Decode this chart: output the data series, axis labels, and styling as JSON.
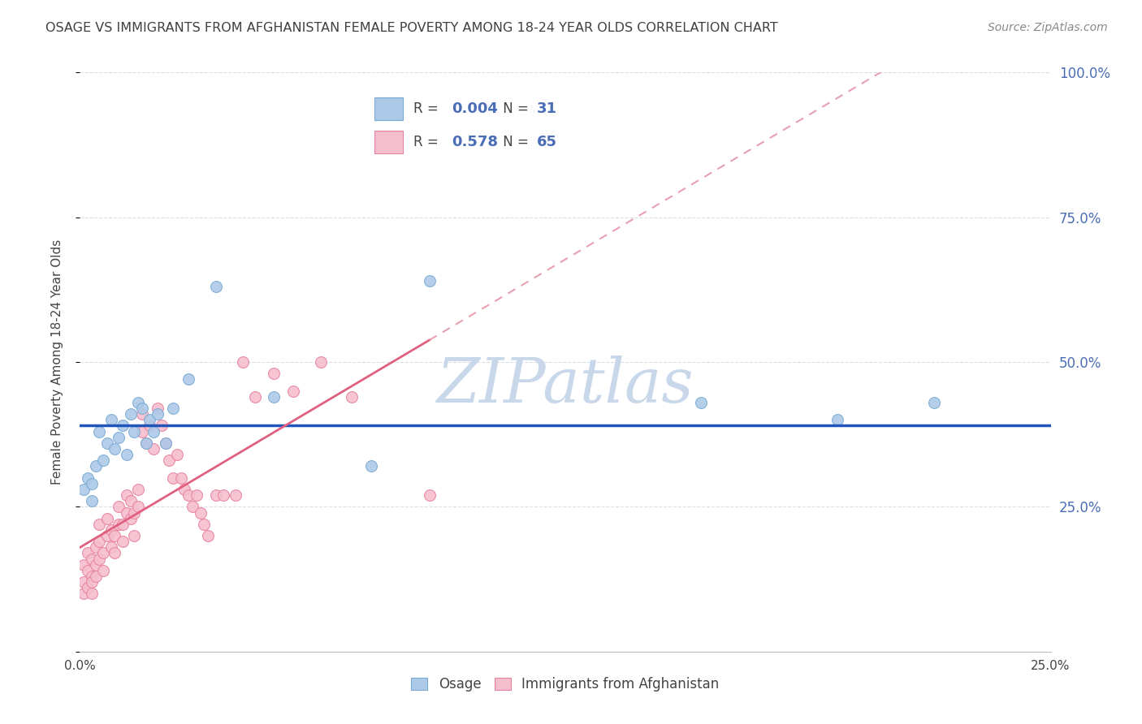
{
  "title": "OSAGE VS IMMIGRANTS FROM AFGHANISTAN FEMALE POVERTY AMONG 18-24 YEAR OLDS CORRELATION CHART",
  "source": "Source: ZipAtlas.com",
  "ylabel": "Female Poverty Among 18-24 Year Olds",
  "xlim": [
    0.0,
    0.25
  ],
  "ylim": [
    0.0,
    1.0
  ],
  "group1_label": "Osage",
  "group1_color": "#adc9e8",
  "group1_edge": "#7aabd4",
  "group1_R": 0.004,
  "group1_N": 31,
  "group2_label": "Immigrants from Afghanistan",
  "group2_color": "#f5bece",
  "group2_edge": "#e8839e",
  "group2_R": 0.578,
  "group2_N": 65,
  "trend1_color": "#2255bb",
  "trend2_color": "#e06080",
  "trend2_dash_color": "#e8a0b0",
  "watermark_color": "#c8d8ea",
  "background_color": "#ffffff",
  "grid_color": "#d8dfe8",
  "title_color": "#404040",
  "axis_label_color": "#4a6db5",
  "marker_size": 100,
  "osage_x": [
    0.001,
    0.002,
    0.003,
    0.003,
    0.004,
    0.005,
    0.006,
    0.007,
    0.008,
    0.009,
    0.01,
    0.011,
    0.012,
    0.013,
    0.014,
    0.015,
    0.016,
    0.017,
    0.018,
    0.019,
    0.02,
    0.022,
    0.024,
    0.028,
    0.035,
    0.05,
    0.075,
    0.09,
    0.16,
    0.195,
    0.22
  ],
  "osage_y": [
    0.28,
    0.3,
    0.26,
    0.29,
    0.32,
    0.38,
    0.33,
    0.36,
    0.4,
    0.35,
    0.37,
    0.39,
    0.34,
    0.41,
    0.38,
    0.43,
    0.42,
    0.36,
    0.4,
    0.38,
    0.41,
    0.36,
    0.42,
    0.47,
    0.63,
    0.44,
    0.32,
    0.64,
    0.43,
    0.4,
    0.43
  ],
  "afg_x": [
    0.001,
    0.001,
    0.001,
    0.002,
    0.002,
    0.002,
    0.003,
    0.003,
    0.003,
    0.003,
    0.004,
    0.004,
    0.004,
    0.005,
    0.005,
    0.005,
    0.006,
    0.006,
    0.007,
    0.007,
    0.008,
    0.008,
    0.009,
    0.009,
    0.01,
    0.01,
    0.011,
    0.011,
    0.012,
    0.012,
    0.013,
    0.013,
    0.014,
    0.014,
    0.015,
    0.015,
    0.016,
    0.016,
    0.017,
    0.018,
    0.019,
    0.02,
    0.021,
    0.022,
    0.023,
    0.024,
    0.025,
    0.026,
    0.027,
    0.028,
    0.029,
    0.03,
    0.031,
    0.032,
    0.033,
    0.035,
    0.037,
    0.04,
    0.042,
    0.045,
    0.05,
    0.055,
    0.062,
    0.07,
    0.09
  ],
  "afg_y": [
    0.1,
    0.12,
    0.15,
    0.11,
    0.14,
    0.17,
    0.13,
    0.16,
    0.1,
    0.12,
    0.15,
    0.18,
    0.13,
    0.16,
    0.19,
    0.22,
    0.14,
    0.17,
    0.2,
    0.23,
    0.18,
    0.21,
    0.17,
    0.2,
    0.22,
    0.25,
    0.19,
    0.22,
    0.24,
    0.27,
    0.23,
    0.26,
    0.2,
    0.24,
    0.28,
    0.25,
    0.38,
    0.41,
    0.36,
    0.39,
    0.35,
    0.42,
    0.39,
    0.36,
    0.33,
    0.3,
    0.34,
    0.3,
    0.28,
    0.27,
    0.25,
    0.27,
    0.24,
    0.22,
    0.2,
    0.27,
    0.27,
    0.27,
    0.5,
    0.44,
    0.48,
    0.45,
    0.5,
    0.44,
    0.27
  ]
}
